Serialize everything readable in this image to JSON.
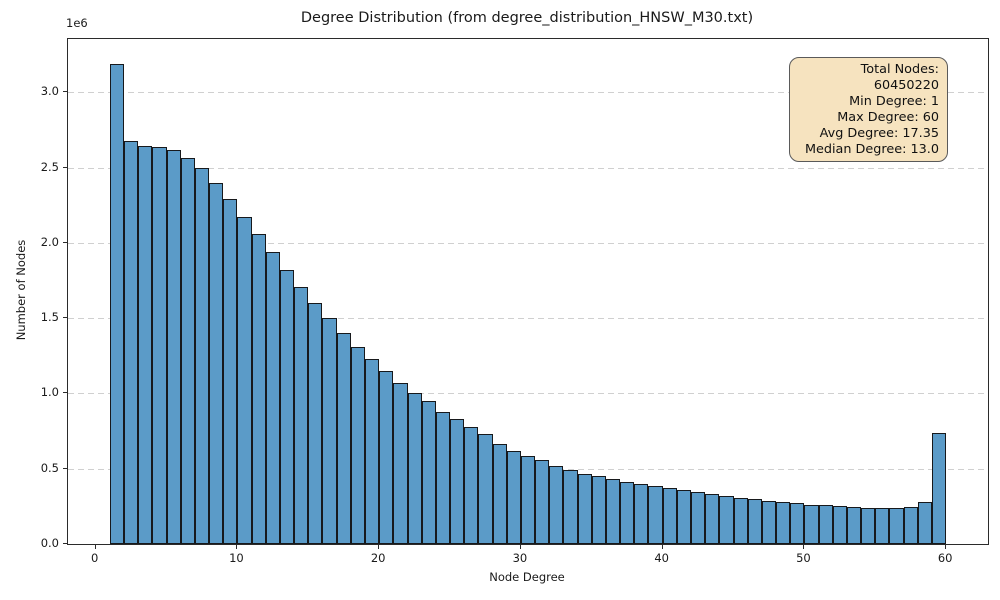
{
  "chart_data": {
    "type": "bar",
    "title": "Degree Distribution (from degree_distribution_HNSW_M30.txt)",
    "xlabel": "Node Degree",
    "ylabel": "Number of Nodes",
    "y_offset_label": "1e6",
    "xlim": [
      -1.95,
      62.95
    ],
    "ylim": [
      0,
      3355000
    ],
    "bin_width": 1,
    "grid": {
      "axis": "y",
      "style": "dashed",
      "color": "#d0d0d0"
    },
    "degrees": [
      1,
      2,
      3,
      4,
      5,
      6,
      7,
      8,
      9,
      10,
      11,
      12,
      13,
      14,
      15,
      16,
      17,
      18,
      19,
      20,
      21,
      22,
      23,
      24,
      25,
      26,
      27,
      28,
      29,
      30,
      31,
      32,
      33,
      34,
      35,
      36,
      37,
      38,
      39,
      40,
      41,
      42,
      43,
      44,
      45,
      46,
      47,
      48,
      49,
      50,
      51,
      52,
      53,
      54,
      55,
      56,
      57,
      58,
      59
    ],
    "values": [
      3190000,
      2680000,
      2645000,
      2640000,
      2620000,
      2565000,
      2500000,
      2400000,
      2290000,
      2175000,
      2060000,
      1940000,
      1820000,
      1710000,
      1600000,
      1500000,
      1400000,
      1310000,
      1230000,
      1150000,
      1070000,
      1005000,
      950000,
      880000,
      830000,
      780000,
      730000,
      665000,
      620000,
      585000,
      555000,
      515000,
      490000,
      468000,
      450000,
      432000,
      415000,
      400000,
      387000,
      373000,
      360000,
      345000,
      332000,
      320000,
      308000,
      297000,
      287000,
      278000,
      270000,
      262000,
      256000,
      250000,
      244000,
      240000,
      238000,
      241000,
      248000,
      280000,
      735000
    ],
    "xticks": [
      0,
      10,
      20,
      30,
      40,
      50,
      60
    ],
    "yticks": [
      {
        "value": 0,
        "label": "0.0"
      },
      {
        "value": 500000,
        "label": "0.5"
      },
      {
        "value": 1000000,
        "label": "1.0"
      },
      {
        "value": 1500000,
        "label": "1.5"
      },
      {
        "value": 2000000,
        "label": "2.0"
      },
      {
        "value": 2500000,
        "label": "2.5"
      },
      {
        "value": 3000000,
        "label": "3.0"
      }
    ],
    "colors": {
      "bar_fill": "#5b9bc8",
      "bar_edge": "#17191c",
      "spine": "#2b2b2b",
      "stats_bg": "#f6e3bf",
      "stats_border": "#5a5a5a"
    },
    "annotation": {
      "position": "upper right",
      "lines": [
        "Total Nodes: 60450220",
        "Min Degree: 1",
        "Max Degree: 60",
        "Avg Degree: 17.35",
        "Median Degree: 13.0"
      ]
    }
  }
}
